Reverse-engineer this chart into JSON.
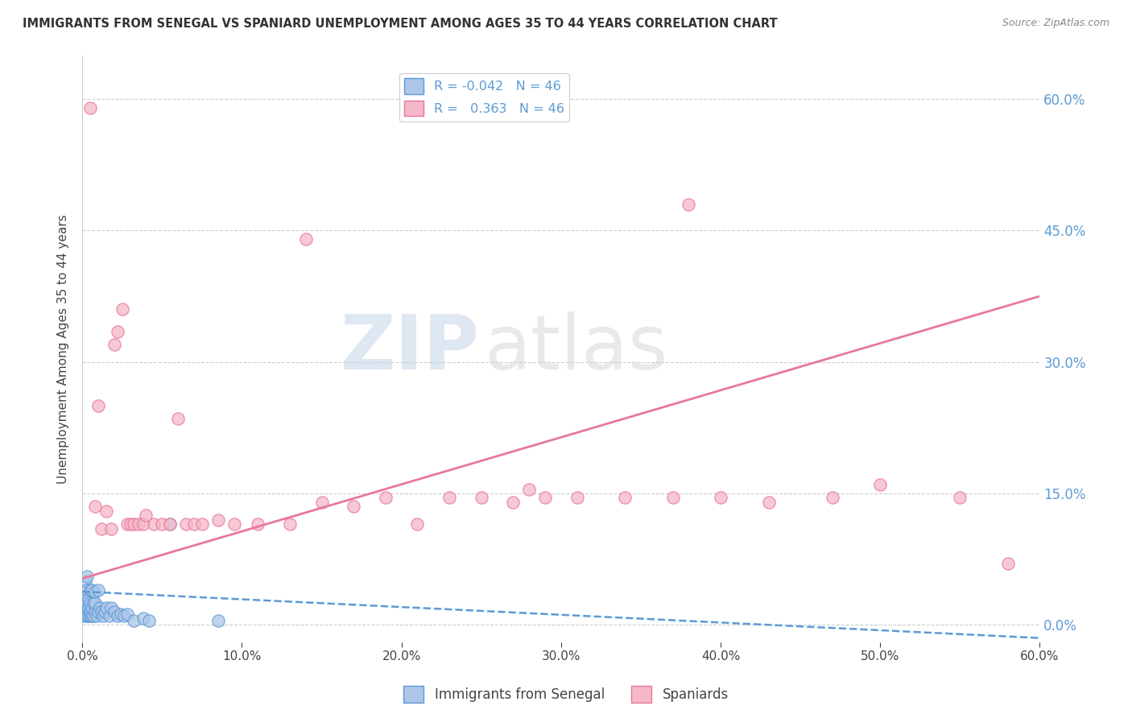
{
  "title": "IMMIGRANTS FROM SENEGAL VS SPANIARD UNEMPLOYMENT AMONG AGES 35 TO 44 YEARS CORRELATION CHART",
  "source": "Source: ZipAtlas.com",
  "ylabel": "Unemployment Among Ages 35 to 44 years",
  "xlabel_blue": "Immigrants from Senegal",
  "xlabel_pink": "Spaniards",
  "R_blue": -0.042,
  "R_pink": 0.363,
  "N_blue": 46,
  "N_pink": 46,
  "xlim": [
    0,
    0.6
  ],
  "ylim": [
    -0.02,
    0.65
  ],
  "yticks": [
    0.0,
    0.15,
    0.3,
    0.45,
    0.6
  ],
  "xticks": [
    0.0,
    0.1,
    0.2,
    0.3,
    0.4,
    0.5,
    0.6
  ],
  "color_blue": "#adc6e8",
  "color_pink": "#f5b8c8",
  "color_blue_dark": "#5b9bd5",
  "color_pink_dark": "#e8789a",
  "watermark_zip": "ZIP",
  "watermark_atlas": "atlas",
  "blue_x": [
    0.0005,
    0.001,
    0.001,
    0.002,
    0.002,
    0.002,
    0.003,
    0.003,
    0.003,
    0.003,
    0.003,
    0.004,
    0.004,
    0.004,
    0.005,
    0.005,
    0.005,
    0.005,
    0.006,
    0.006,
    0.006,
    0.007,
    0.007,
    0.008,
    0.008,
    0.008,
    0.009,
    0.01,
    0.01,
    0.011,
    0.012,
    0.013,
    0.014,
    0.015,
    0.017,
    0.018,
    0.02,
    0.022,
    0.024,
    0.026,
    0.028,
    0.032,
    0.038,
    0.042,
    0.055,
    0.085
  ],
  "blue_y": [
    0.03,
    0.01,
    0.025,
    0.015,
    0.03,
    0.05,
    0.01,
    0.02,
    0.025,
    0.04,
    0.055,
    0.01,
    0.02,
    0.03,
    0.01,
    0.015,
    0.025,
    0.04,
    0.01,
    0.02,
    0.04,
    0.01,
    0.025,
    0.015,
    0.025,
    0.038,
    0.01,
    0.015,
    0.04,
    0.02,
    0.015,
    0.01,
    0.015,
    0.02,
    0.01,
    0.02,
    0.015,
    0.01,
    0.012,
    0.01,
    0.012,
    0.005,
    0.008,
    0.005,
    0.115,
    0.005
  ],
  "pink_x": [
    0.005,
    0.008,
    0.01,
    0.012,
    0.015,
    0.018,
    0.02,
    0.022,
    0.025,
    0.028,
    0.03,
    0.032,
    0.035,
    0.038,
    0.04,
    0.045,
    0.05,
    0.055,
    0.06,
    0.065,
    0.07,
    0.075,
    0.085,
    0.095,
    0.11,
    0.13,
    0.15,
    0.17,
    0.19,
    0.21,
    0.23,
    0.25,
    0.27,
    0.29,
    0.31,
    0.34,
    0.37,
    0.4,
    0.43,
    0.47,
    0.5,
    0.55,
    0.58,
    0.14,
    0.28,
    0.38
  ],
  "pink_y": [
    0.59,
    0.135,
    0.25,
    0.11,
    0.13,
    0.11,
    0.32,
    0.335,
    0.36,
    0.115,
    0.115,
    0.115,
    0.115,
    0.115,
    0.125,
    0.115,
    0.115,
    0.115,
    0.235,
    0.115,
    0.115,
    0.115,
    0.12,
    0.115,
    0.115,
    0.115,
    0.14,
    0.135,
    0.145,
    0.115,
    0.145,
    0.145,
    0.14,
    0.145,
    0.145,
    0.145,
    0.145,
    0.145,
    0.14,
    0.145,
    0.16,
    0.145,
    0.07,
    0.44,
    0.155,
    0.48
  ],
  "pink_trend_x0": 0.0,
  "pink_trend_y0": 0.053,
  "pink_trend_x1": 0.6,
  "pink_trend_y1": 0.375,
  "blue_trend_x0": 0.0,
  "blue_trend_y0": 0.038,
  "blue_trend_x1": 0.6,
  "blue_trend_y1": -0.015,
  "background_color": "#ffffff",
  "grid_color": "#cccccc",
  "title_color": "#333333",
  "axis_label_color": "#444444",
  "right_tick_color": "#5b9bd5",
  "legend_label_color": "#5b9bd5"
}
